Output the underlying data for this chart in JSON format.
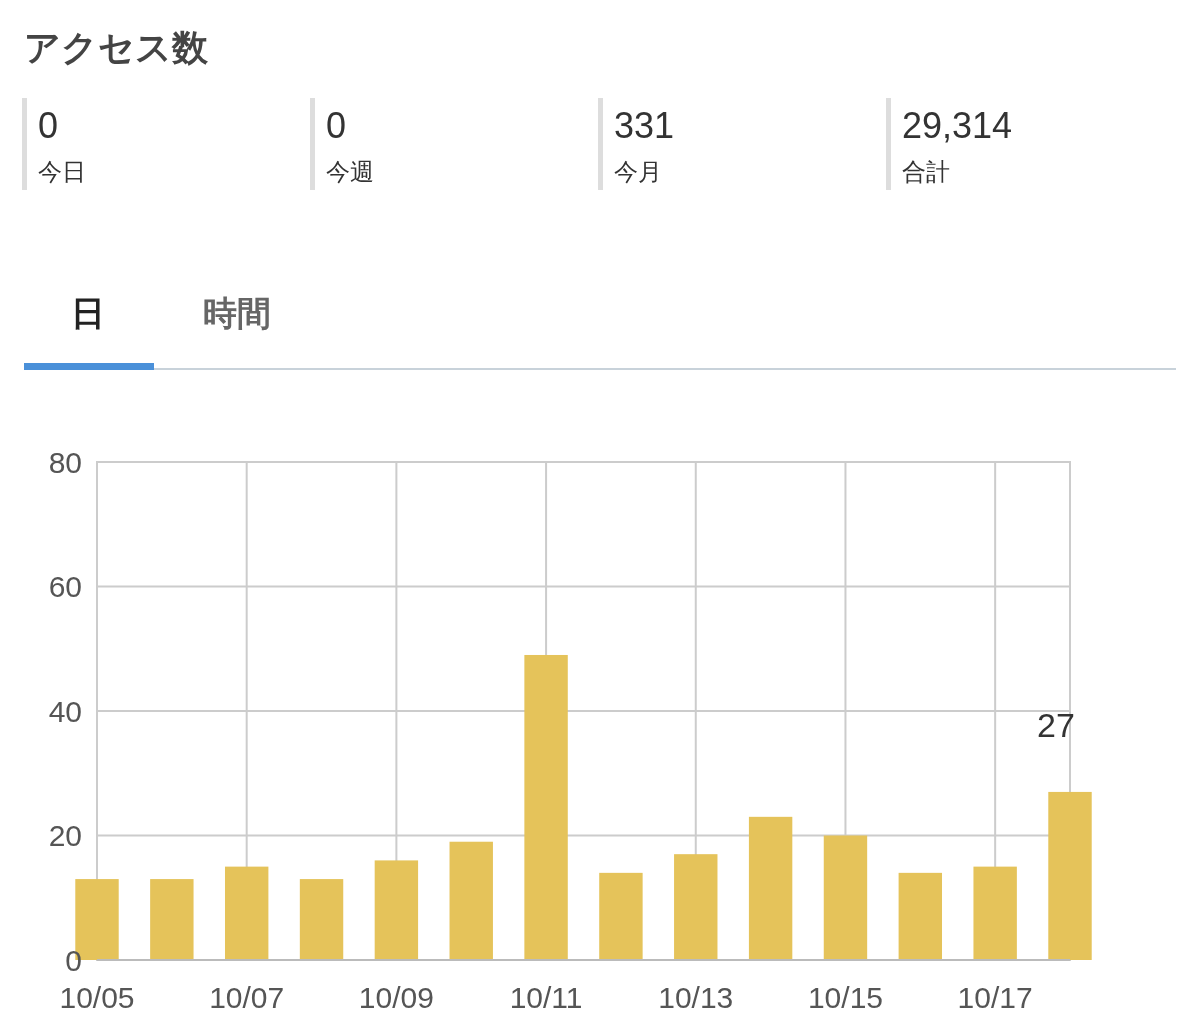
{
  "chart_data": [
    {
      "type": "other",
      "title": "アクセス数",
      "categories": [
        "今日",
        "今週",
        "今月",
        "合計"
      ],
      "value_labels": [
        "0",
        "0",
        "331",
        "29,314"
      ],
      "annotations": [
        "日",
        "時間"
      ]
    },
    {
      "type": "bar",
      "categories": [
        "10/05",
        null,
        "10/07",
        null,
        "10/09",
        null,
        "10/11",
        null,
        "10/13",
        null,
        "10/15",
        null,
        "10/17",
        null
      ],
      "values": [
        13,
        13,
        15,
        13,
        16,
        19,
        49,
        14,
        17,
        23,
        20,
        14,
        15,
        27
      ],
      "value_labels": [
        null,
        null,
        null,
        null,
        null,
        null,
        null,
        null,
        null,
        null,
        null,
        null,
        null,
        "27"
      ],
      "color": "#e5c35a",
      "ylim": [
        0,
        80
      ],
      "yticks": [
        0,
        20,
        40,
        60,
        80
      ],
      "grid": true
    }
  ]
}
